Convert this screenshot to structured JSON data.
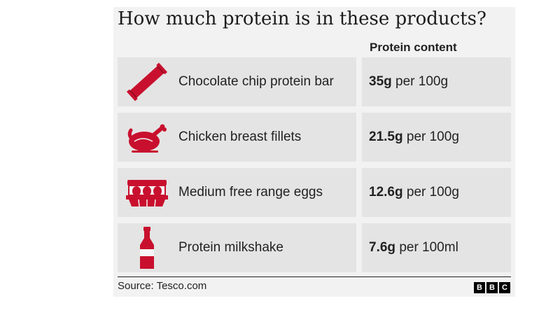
{
  "chart_data": {
    "type": "table",
    "title": "How much protein is in these products?",
    "column_header": "Protein content",
    "accent_color": "#c8102e",
    "rows": [
      {
        "product": "Chocolate chip protein bar",
        "amount": "35g",
        "unit": "per 100g",
        "icon": "protein-bar-icon"
      },
      {
        "product": "Chicken breast fillets",
        "amount": "21.5g",
        "unit": "per 100g",
        "icon": "roast-chicken-icon"
      },
      {
        "product": "Medium free range eggs",
        "amount": "12.6g",
        "unit": "per 100g",
        "icon": "egg-carton-icon"
      },
      {
        "product": "Protein milkshake",
        "amount": "7.6g",
        "unit": "per 100ml",
        "icon": "bottle-icon"
      }
    ]
  },
  "footer": {
    "source": "Source: Tesco.com",
    "logo_letters": [
      "B",
      "B",
      "C"
    ]
  }
}
